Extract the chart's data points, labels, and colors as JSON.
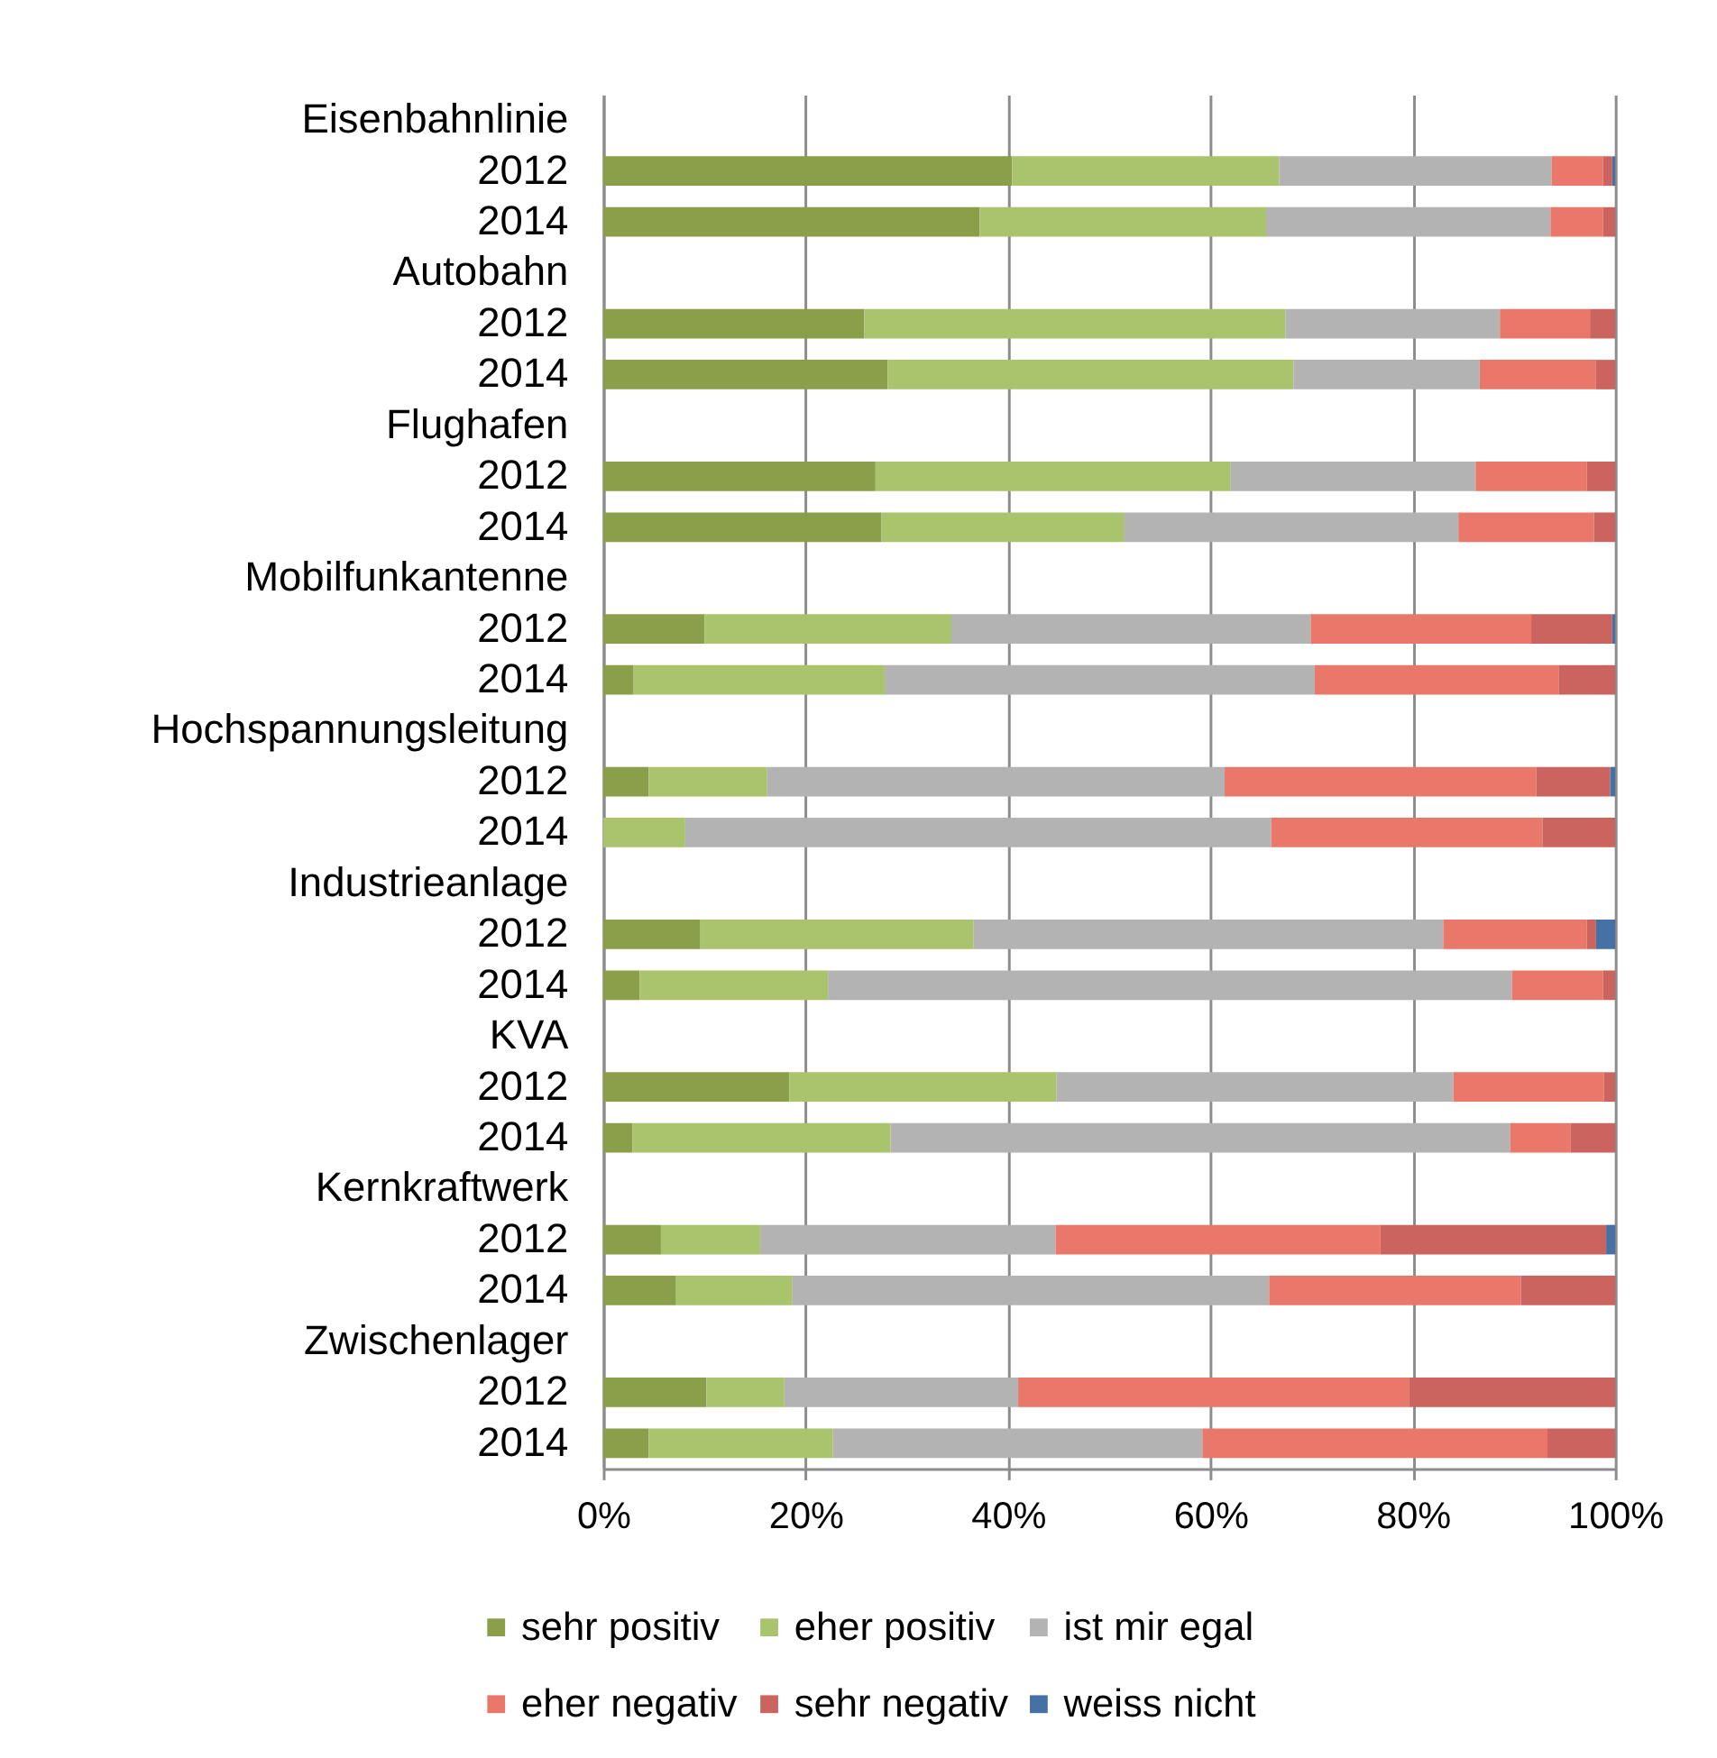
{
  "chart_data": {
    "type": "bar",
    "orientation": "horizontal",
    "stacked": true,
    "categories": [
      "Eisenbahnlinie",
      "2012",
      "2014",
      "Autobahn",
      "2012",
      "2014",
      "Flughafen",
      "2012",
      "2014",
      "Mobilfunkantenne",
      "2012",
      "2014",
      "Hochspannungsleitung",
      "2012",
      "2014",
      "Industrieanlage",
      "2012",
      "2014",
      "KVA",
      "2012",
      "2014",
      "Kernkraftwerk",
      "2012",
      "2014",
      "Zwischenlager",
      "2012",
      "2014"
    ],
    "series": [
      {
        "name": "sehr positiv",
        "color": "#8b9f4b",
        "values": [
          null,
          40.4,
          37.2,
          null,
          25.8,
          28.1,
          null,
          26.9,
          27.5,
          null,
          10.0,
          3.0,
          null,
          4.5,
          null,
          null,
          9.6,
          3.6,
          null,
          18.4,
          2.9,
          null,
          5.7,
          7.2,
          null,
          10.2,
          4.5
        ]
      },
      {
        "name": "eher positiv",
        "color": "#aac46d",
        "values": [
          null,
          26.4,
          28.3,
          null,
          41.6,
          40.1,
          null,
          35.1,
          24.0,
          null,
          24.4,
          24.8,
          null,
          11.7,
          8.1,
          null,
          27.0,
          18.6,
          null,
          26.4,
          25.5,
          null,
          9.8,
          11.5,
          null,
          7.7,
          18.2
        ]
      },
      {
        "name": "ist mir egal",
        "color": "#b3b3b3",
        "values": [
          null,
          26.9,
          28.1,
          null,
          21.2,
          18.4,
          null,
          24.2,
          33.0,
          null,
          35.5,
          42.5,
          null,
          45.2,
          57.9,
          null,
          46.4,
          67.6,
          null,
          39.2,
          61.2,
          null,
          29.2,
          47.1,
          null,
          23.1,
          36.5
        ]
      },
      {
        "name": "eher negativ",
        "color": "#e9786a",
        "values": [
          null,
          5.1,
          5.2,
          null,
          8.9,
          11.5,
          null,
          11.0,
          13.4,
          null,
          21.8,
          24.1,
          null,
          30.8,
          26.8,
          null,
          14.2,
          9.0,
          null,
          14.9,
          6.0,
          null,
          32.1,
          24.9,
          null,
          38.6,
          34.1
        ]
      },
      {
        "name": "sehr negativ",
        "color": "#cb645e",
        "values": [
          null,
          0.9,
          1.2,
          null,
          2.5,
          1.9,
          null,
          2.8,
          2.1,
          null,
          8.0,
          5.6,
          null,
          7.3,
          7.2,
          null,
          0.9,
          1.2,
          null,
          1.1,
          4.4,
          null,
          22.3,
          9.3,
          null,
          20.4,
          6.7
        ]
      },
      {
        "name": "weiss nicht",
        "color": "#4671a5",
        "values": [
          null,
          0.3,
          null,
          null,
          null,
          null,
          null,
          null,
          null,
          null,
          0.3,
          null,
          null,
          0.5,
          null,
          null,
          1.9,
          null,
          null,
          null,
          null,
          null,
          0.9,
          null,
          null,
          null,
          null
        ]
      }
    ],
    "xlim": [
      0,
      100
    ],
    "xticks": [
      {
        "value": 0,
        "label": "0%"
      },
      {
        "value": 20,
        "label": "20%"
      },
      {
        "value": 40,
        "label": "40%"
      },
      {
        "value": 60,
        "label": "60%"
      },
      {
        "value": 80,
        "label": "80%"
      },
      {
        "value": 100,
        "label": "100%"
      }
    ],
    "grid": "x",
    "legend": "bottom"
  }
}
